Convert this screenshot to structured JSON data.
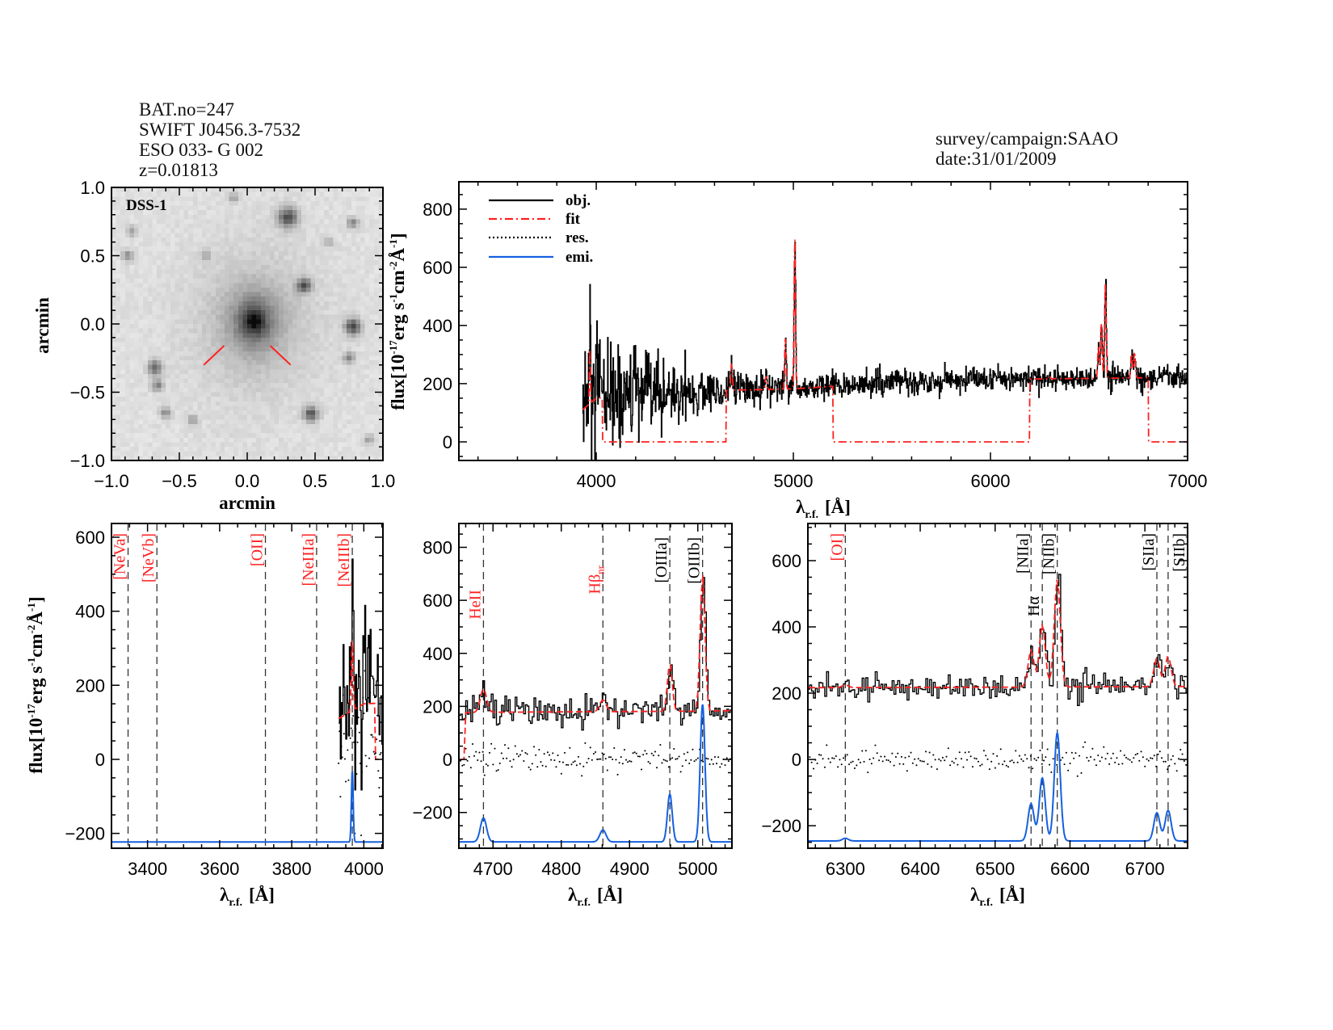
{
  "header": {
    "bat": "BAT.no=247",
    "swift": "SWIFT J0456.3-7532",
    "name": "ESO 033- G 002",
    "z": "z=0.01813",
    "survey": "survey/campaign:SAAO",
    "date": "date:31/01/2009"
  },
  "colors": {
    "obj": "#000000",
    "fit": "#ff2020",
    "res": "#000000",
    "emi": "#1560e0",
    "label_red": "#ff2020",
    "label_black": "#000000",
    "marker": "#ff2020"
  },
  "axis_text": {
    "arcmin": "arcmin",
    "lambda": "λ",
    "lambda_sub": "r.f.",
    "lambda_unit": "[Å]",
    "flux": [
      "flux[10",
      "-17",
      "erg s",
      "-1",
      "cm",
      "-2",
      "Å",
      "-1",
      "]"
    ]
  },
  "legend": [
    {
      "label": "obj.",
      "style": "solid",
      "color": "#000000"
    },
    {
      "label": "fit",
      "style": "dash-dot",
      "color": "#ff2020"
    },
    {
      "label": "res.",
      "style": "dotted",
      "color": "#000000"
    },
    {
      "label": "emi.",
      "style": "solid",
      "color": "#1560e0"
    }
  ],
  "chart_data": [
    {
      "id": "dss",
      "type": "image",
      "label": "DSS-1",
      "xlabel": "arcmin",
      "ylabel": "arcmin",
      "xlim": [
        -1,
        1
      ],
      "ylim": [
        -1,
        1
      ],
      "xticks": [
        [
          -1,
          "−1.0"
        ],
        [
          -0.5,
          "−0.5"
        ],
        [
          0,
          "0.0"
        ],
        [
          0.5,
          "0.5"
        ],
        [
          1,
          "1.0"
        ]
      ],
      "yticks": [
        [
          -1,
          "−1.0"
        ],
        [
          -0.5,
          "−0.5"
        ],
        [
          0,
          "0.0"
        ],
        [
          0.5,
          "0.5"
        ],
        [
          1,
          "1.0"
        ]
      ]
    },
    {
      "id": "full",
      "type": "line",
      "xlim": [
        3303,
        7000
      ],
      "ylim": [
        -64,
        894
      ],
      "xticks": [
        [
          4000,
          "4000"
        ],
        [
          5000,
          "5000"
        ],
        [
          6000,
          "6000"
        ],
        [
          7000,
          "7000"
        ]
      ],
      "yticks": [
        [
          0,
          "0"
        ],
        [
          200,
          "200"
        ],
        [
          400,
          "400"
        ],
        [
          600,
          "600"
        ],
        [
          800,
          "800"
        ]
      ],
      "series": [
        "obj",
        "fit"
      ],
      "legend": "top-left"
    },
    {
      "id": "left",
      "type": "line",
      "xlim": [
        3300,
        4053
      ],
      "ylim": [
        -240,
        637
      ],
      "emi_offset": -223,
      "xticks": [
        [
          3400,
          "3400"
        ],
        [
          3600,
          "3600"
        ],
        [
          3800,
          "3800"
        ],
        [
          4000,
          "4000"
        ]
      ],
      "yticks": [
        [
          -200,
          "−200"
        ],
        [
          0,
          "0"
        ],
        [
          200,
          "200"
        ],
        [
          400,
          "400"
        ],
        [
          600,
          "600"
        ]
      ],
      "series": [
        "obj",
        "fit",
        "res",
        "emi"
      ],
      "lines": [
        {
          "label": "[NeVa]",
          "wave": 3346,
          "color": "red"
        },
        {
          "label": "[NeVb]",
          "wave": 3426,
          "color": "red"
        },
        {
          "label": "[OII]",
          "wave": 3727,
          "color": "red"
        },
        {
          "label": "[NeIIIa]",
          "wave": 3869,
          "color": "red"
        },
        {
          "label": "[NeIIIb]",
          "wave": 3968,
          "color": "red"
        }
      ]
    },
    {
      "id": "mid",
      "type": "line",
      "xlim": [
        4650,
        5050
      ],
      "ylim": [
        -335,
        890
      ],
      "emi_offset": -311,
      "xticks": [
        [
          4700,
          "4700"
        ],
        [
          4800,
          "4800"
        ],
        [
          4900,
          "4900"
        ],
        [
          5000,
          "5000"
        ]
      ],
      "yticks": [
        [
          -200,
          "−200"
        ],
        [
          0,
          "0"
        ],
        [
          200,
          "200"
        ],
        [
          400,
          "400"
        ],
        [
          600,
          "600"
        ],
        [
          800,
          "800"
        ]
      ],
      "series": [
        "obj",
        "fit",
        "res",
        "emi"
      ],
      "lines": [
        {
          "label": "HeII",
          "wave": 4686,
          "color": "red"
        },
        {
          "label": "Hβ",
          "sub": "nr",
          "wave": 4861,
          "color": "red"
        },
        {
          "label": "[OIIIa]",
          "wave": 4959,
          "color": "black"
        },
        {
          "label": "[OIIIb]",
          "wave": 5007,
          "color": "black"
        }
      ]
    },
    {
      "id": "right",
      "type": "line",
      "xlim": [
        6250,
        6757
      ],
      "ylim": [
        -268,
        712
      ],
      "emi_offset": -246,
      "xticks": [
        [
          6300,
          "6300"
        ],
        [
          6400,
          "6400"
        ],
        [
          6500,
          "6500"
        ],
        [
          6600,
          "6600"
        ],
        [
          6700,
          "6700"
        ]
      ],
      "yticks": [
        [
          -200,
          "−200"
        ],
        [
          0,
          "0"
        ],
        [
          200,
          "200"
        ],
        [
          400,
          "400"
        ],
        [
          600,
          "600"
        ]
      ],
      "series": [
        "obj",
        "fit",
        "res",
        "emi"
      ],
      "lines": [
        {
          "label": "[OI]",
          "wave": 6300,
          "color": "red"
        },
        {
          "label": "[NIIa]",
          "wave": 6548,
          "color": "black"
        },
        {
          "label": "Hα",
          "wave": 6563,
          "color": "black"
        },
        {
          "label": "[NIIb]",
          "wave": 6583,
          "color": "black"
        },
        {
          "label": "[SIIa]",
          "wave": 6716,
          "color": "black"
        },
        {
          "label": "[SIIb]",
          "wave": 6731,
          "color": "black"
        }
      ]
    }
  ],
  "spectrum": {
    "wave_range": [
      3930,
      7000
    ],
    "continuum": [
      [
        3930,
        110
      ],
      [
        4000,
        150
      ],
      [
        4500,
        170
      ],
      [
        4700,
        178
      ],
      [
        5000,
        182
      ],
      [
        5500,
        205
      ],
      [
        6000,
        215
      ],
      [
        6500,
        218
      ],
      [
        7000,
        222
      ]
    ],
    "noise": [
      [
        3930,
        170
      ],
      [
        4100,
        90
      ],
      [
        4400,
        55
      ],
      [
        4700,
        30
      ],
      [
        5000,
        22
      ],
      [
        7000,
        20
      ]
    ],
    "emission_lines": [
      {
        "wave": 3968,
        "amp": 190,
        "sigma": 2.5
      },
      {
        "wave": 4686,
        "amp": 90,
        "sigma": 4.5
      },
      {
        "wave": 4861,
        "amp": 45,
        "sigma": 4.5
      },
      {
        "wave": 4959,
        "amp": 180,
        "sigma": 3.5
      },
      {
        "wave": 5007,
        "amp": 518,
        "sigma": 3.5
      },
      {
        "wave": 6300,
        "amp": 8,
        "sigma": 4
      },
      {
        "wave": 6548,
        "amp": 112,
        "sigma": 4
      },
      {
        "wave": 6563,
        "amp": 190,
        "sigma": 4
      },
      {
        "wave": 6583,
        "amp": 326,
        "sigma": 4
      },
      {
        "wave": 6716,
        "amp": 85,
        "sigma": 4
      },
      {
        "wave": 6731,
        "amp": 92,
        "sigma": 4
      }
    ],
    "fit_windows": [
      [
        3930,
        4030
      ],
      [
        4660,
        5200
      ],
      [
        6200,
        6800
      ]
    ]
  }
}
